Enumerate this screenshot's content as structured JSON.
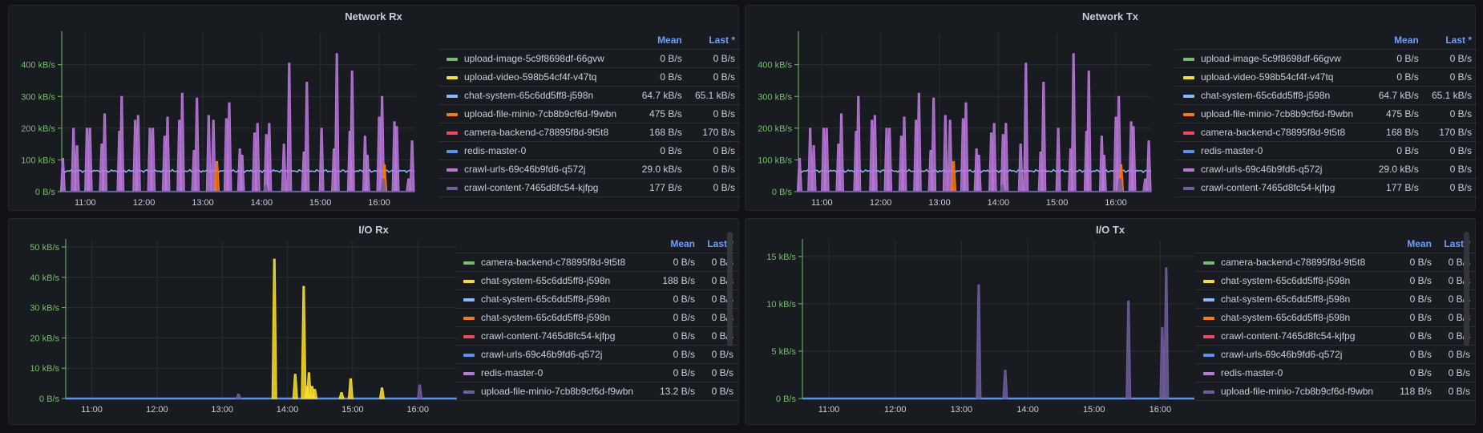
{
  "dashboard": {
    "panels": [
      {
        "id": "network-rx",
        "title": "Network Rx",
        "legend": {
          "headers": [
            "Mean",
            "Last *"
          ],
          "rows": [
            {
              "name": "upload-image-5c9f8698df-66gvw",
              "color": "#73bf69",
              "mean": "0 B/s",
              "last": "0 B/s"
            },
            {
              "name": "upload-video-598b54cf4f-v47tq",
              "color": "#fade2a",
              "mean": "0 B/s",
              "last": "0 B/s"
            },
            {
              "name": "chat-system-65c6dd5ff8-j598n",
              "color": "#8ab8ff",
              "mean": "64.7 kB/s",
              "last": "65.1 kB/s"
            },
            {
              "name": "upload-file-minio-7cb8b9cf6d-f9wbn",
              "color": "#ff780a",
              "mean": "475 B/s",
              "last": "0 B/s"
            },
            {
              "name": "camera-backend-c78895f8d-9t5t8",
              "color": "#f2495c",
              "mean": "168 B/s",
              "last": "170 B/s"
            },
            {
              "name": "redis-master-0",
              "color": "#5794f2",
              "mean": "0 B/s",
              "last": "0 B/s"
            },
            {
              "name": "crawl-urls-69c46b9fd6-q572j",
              "color": "#b877d9",
              "mean": "29.0 kB/s",
              "last": "0 B/s"
            },
            {
              "name": "crawl-content-7465d8fc54-kjfpg",
              "color": "#705da0",
              "mean": "177 B/s",
              "last": "0 B/s"
            }
          ]
        }
      },
      {
        "id": "network-tx",
        "title": "Network Tx",
        "legend": {
          "headers": [
            "Mean",
            "Last *"
          ],
          "rows": [
            {
              "name": "upload-image-5c9f8698df-66gvw",
              "color": "#73bf69",
              "mean": "0 B/s",
              "last": "0 B/s"
            },
            {
              "name": "upload-video-598b54cf4f-v47tq",
              "color": "#fade2a",
              "mean": "0 B/s",
              "last": "0 B/s"
            },
            {
              "name": "chat-system-65c6dd5ff8-j598n",
              "color": "#8ab8ff",
              "mean": "64.7 kB/s",
              "last": "65.1 kB/s"
            },
            {
              "name": "upload-file-minio-7cb8b9cf6d-f9wbn",
              "color": "#ff780a",
              "mean": "475 B/s",
              "last": "0 B/s"
            },
            {
              "name": "camera-backend-c78895f8d-9t5t8",
              "color": "#f2495c",
              "mean": "168 B/s",
              "last": "170 B/s"
            },
            {
              "name": "redis-master-0",
              "color": "#5794f2",
              "mean": "0 B/s",
              "last": "0 B/s"
            },
            {
              "name": "crawl-urls-69c46b9fd6-q572j",
              "color": "#b877d9",
              "mean": "29.0 kB/s",
              "last": "0 B/s"
            },
            {
              "name": "crawl-content-7465d8fc54-kjfpg",
              "color": "#705da0",
              "mean": "177 B/s",
              "last": "0 B/s"
            }
          ]
        }
      },
      {
        "id": "io-rx",
        "title": "I/O Rx",
        "legend": {
          "headers": [
            "Mean",
            "Last *"
          ],
          "rows": [
            {
              "name": "camera-backend-c78895f8d-9t5t8",
              "color": "#73bf69",
              "mean": "0 B/s",
              "last": "0 B/s"
            },
            {
              "name": "chat-system-65c6dd5ff8-j598n",
              "color": "#fade2a",
              "mean": "188 B/s",
              "last": "0 B/s"
            },
            {
              "name": "chat-system-65c6dd5ff8-j598n",
              "color": "#8ab8ff",
              "mean": "0 B/s",
              "last": "0 B/s"
            },
            {
              "name": "chat-system-65c6dd5ff8-j598n",
              "color": "#ff780a",
              "mean": "0 B/s",
              "last": "0 B/s"
            },
            {
              "name": "crawl-content-7465d8fc54-kjfpg",
              "color": "#f2495c",
              "mean": "0 B/s",
              "last": "0 B/s"
            },
            {
              "name": "crawl-urls-69c46b9fd6-q572j",
              "color": "#5794f2",
              "mean": "0 B/s",
              "last": "0 B/s"
            },
            {
              "name": "redis-master-0",
              "color": "#b877d9",
              "mean": "0 B/s",
              "last": "0 B/s"
            },
            {
              "name": "upload-file-minio-7cb8b9cf6d-f9wbn",
              "color": "#705da0",
              "mean": "13.2 B/s",
              "last": "0 B/s"
            }
          ]
        }
      },
      {
        "id": "io-tx",
        "title": "I/O Tx",
        "legend": {
          "headers": [
            "Mean",
            "Last *"
          ],
          "rows": [
            {
              "name": "camera-backend-c78895f8d-9t5t8",
              "color": "#73bf69",
              "mean": "0 B/s",
              "last": "0 B/s"
            },
            {
              "name": "chat-system-65c6dd5ff8-j598n",
              "color": "#fade2a",
              "mean": "0 B/s",
              "last": "0 B/s"
            },
            {
              "name": "chat-system-65c6dd5ff8-j598n",
              "color": "#8ab8ff",
              "mean": "0 B/s",
              "last": "0 B/s"
            },
            {
              "name": "chat-system-65c6dd5ff8-j598n",
              "color": "#ff780a",
              "mean": "0 B/s",
              "last": "0 B/s"
            },
            {
              "name": "crawl-content-7465d8fc54-kjfpg",
              "color": "#f2495c",
              "mean": "0 B/s",
              "last": "0 B/s"
            },
            {
              "name": "crawl-urls-69c46b9fd6-q572j",
              "color": "#5794f2",
              "mean": "0 B/s",
              "last": "0 B/s"
            },
            {
              "name": "redis-master-0",
              "color": "#b877d9",
              "mean": "0 B/s",
              "last": "0 B/s"
            },
            {
              "name": "upload-file-minio-7cb8b9cf6d-f9wbn",
              "color": "#705da0",
              "mean": "118 B/s",
              "last": "0 B/s"
            }
          ]
        }
      }
    ]
  },
  "chart_data": [
    {
      "type": "line",
      "title": "Network Rx",
      "xlabel": "",
      "ylabel": "",
      "x_ticks": [
        "11:00",
        "12:00",
        "13:00",
        "14:00",
        "15:00",
        "16:00"
      ],
      "x_range": [
        10.6,
        16.6
      ],
      "y_ticks": [
        "0 B/s",
        "100 kB/s",
        "200 kB/s",
        "300 kB/s",
        "400 kB/s"
      ],
      "ylim": [
        0,
        480
      ],
      "y_unit": "kB/s",
      "grid": true,
      "legend_position": "right",
      "series": [
        {
          "name": "chat-system-65c6dd5ff8-j598n",
          "color": "#8ab8ff",
          "kind": "baseline",
          "value": 65
        },
        {
          "name": "crawl-urls-69c46b9fd6-q572j",
          "color": "#b877d9",
          "kind": "spikes",
          "points": [
            [
              10.62,
              105
            ],
            [
              10.8,
              200
            ],
            [
              10.86,
              145
            ],
            [
              11.03,
              200
            ],
            [
              11.08,
              200
            ],
            [
              11.28,
              150
            ],
            [
              11.33,
              245
            ],
            [
              11.58,
              190
            ],
            [
              11.62,
              300
            ],
            [
              11.85,
              225
            ],
            [
              11.9,
              240
            ],
            [
              12.1,
              200
            ],
            [
              12.15,
              200
            ],
            [
              12.35,
              175
            ],
            [
              12.4,
              235
            ],
            [
              12.6,
              225
            ],
            [
              12.65,
              310
            ],
            [
              12.85,
              130
            ],
            [
              12.9,
              295
            ],
            [
              13.1,
              240
            ],
            [
              13.18,
              225
            ],
            [
              13.4,
              230
            ],
            [
              13.45,
              280
            ],
            [
              13.63,
              135
            ],
            [
              13.67,
              115
            ],
            [
              13.88,
              185
            ],
            [
              13.93,
              215
            ],
            [
              14.08,
              180
            ],
            [
              14.13,
              215
            ],
            [
              14.38,
              150
            ],
            [
              14.47,
              405
            ],
            [
              14.72,
              125
            ],
            [
              14.77,
              345
            ],
            [
              15.02,
              200
            ],
            [
              15.23,
              135
            ],
            [
              15.28,
              435
            ],
            [
              15.5,
              190
            ],
            [
              15.54,
              380
            ],
            [
              15.76,
              175
            ],
            [
              15.8,
              115
            ],
            [
              16.0,
              235
            ],
            [
              16.05,
              300
            ],
            [
              16.26,
              220
            ],
            [
              16.3,
              205
            ],
            [
              16.5,
              40
            ],
            [
              16.56,
              160
            ]
          ]
        },
        {
          "name": "upload-file-minio-7cb8b9cf6d-f9wbn",
          "color": "#ff780a",
          "kind": "spikes",
          "points": [
            [
              13.24,
              95
            ],
            [
              16.09,
              85
            ]
          ]
        },
        {
          "name": "crawl-content-7465d8fc54-kjfpg",
          "color": "#705da0",
          "kind": "spikes",
          "points": [
            [
              14.07,
              20
            ],
            [
              16.07,
              40
            ]
          ]
        }
      ]
    },
    {
      "type": "line",
      "title": "Network Tx",
      "xlabel": "",
      "ylabel": "",
      "x_ticks": [
        "11:00",
        "12:00",
        "13:00",
        "14:00",
        "15:00",
        "16:00"
      ],
      "x_range": [
        10.6,
        16.6
      ],
      "y_ticks": [
        "0 B/s",
        "100 kB/s",
        "200 kB/s",
        "300 kB/s",
        "400 kB/s"
      ],
      "ylim": [
        0,
        480
      ],
      "y_unit": "kB/s",
      "grid": true,
      "legend_position": "right",
      "series": [
        {
          "name": "chat-system-65c6dd5ff8-j598n",
          "color": "#8ab8ff",
          "kind": "baseline",
          "value": 65
        },
        {
          "name": "crawl-urls-69c46b9fd6-q572j",
          "color": "#b877d9",
          "kind": "spikes",
          "points": [
            [
              10.62,
              105
            ],
            [
              10.8,
              200
            ],
            [
              10.86,
              145
            ],
            [
              11.03,
              200
            ],
            [
              11.08,
              200
            ],
            [
              11.28,
              150
            ],
            [
              11.33,
              245
            ],
            [
              11.58,
              190
            ],
            [
              11.62,
              300
            ],
            [
              11.85,
              225
            ],
            [
              11.9,
              240
            ],
            [
              12.1,
              200
            ],
            [
              12.15,
              200
            ],
            [
              12.35,
              175
            ],
            [
              12.4,
              235
            ],
            [
              12.6,
              225
            ],
            [
              12.65,
              310
            ],
            [
              12.85,
              130
            ],
            [
              12.9,
              295
            ],
            [
              13.1,
              240
            ],
            [
              13.18,
              225
            ],
            [
              13.4,
              230
            ],
            [
              13.45,
              280
            ],
            [
              13.63,
              135
            ],
            [
              13.67,
              115
            ],
            [
              13.88,
              185
            ],
            [
              13.93,
              215
            ],
            [
              14.08,
              180
            ],
            [
              14.13,
              215
            ],
            [
              14.38,
              150
            ],
            [
              14.47,
              405
            ],
            [
              14.72,
              125
            ],
            [
              14.77,
              345
            ],
            [
              15.02,
              200
            ],
            [
              15.23,
              135
            ],
            [
              15.28,
              435
            ],
            [
              15.5,
              190
            ],
            [
              15.54,
              380
            ],
            [
              15.76,
              175
            ],
            [
              15.8,
              115
            ],
            [
              16.0,
              235
            ],
            [
              16.05,
              300
            ],
            [
              16.26,
              220
            ],
            [
              16.3,
              205
            ],
            [
              16.5,
              40
            ],
            [
              16.56,
              160
            ]
          ]
        },
        {
          "name": "upload-file-minio-7cb8b9cf6d-f9wbn",
          "color": "#ff780a",
          "kind": "spikes",
          "points": [
            [
              13.24,
              95
            ],
            [
              16.09,
              85
            ]
          ]
        },
        {
          "name": "crawl-content-7465d8fc54-kjfpg",
          "color": "#705da0",
          "kind": "spikes",
          "points": [
            [
              14.07,
              20
            ],
            [
              16.07,
              40
            ]
          ]
        }
      ]
    },
    {
      "type": "line",
      "title": "I/O Rx",
      "xlabel": "",
      "ylabel": "",
      "x_ticks": [
        "11:00",
        "12:00",
        "13:00",
        "14:00",
        "15:00",
        "16:00"
      ],
      "x_range": [
        10.6,
        16.6
      ],
      "y_ticks": [
        "0 B/s",
        "10 kB/s",
        "20 kB/s",
        "30 kB/s",
        "40 kB/s",
        "50 kB/s"
      ],
      "ylim": [
        0,
        50
      ],
      "y_unit": "kB/s",
      "grid": true,
      "legend_position": "right",
      "series": [
        {
          "name": "crawl-urls-69c46b9fd6-q572j",
          "color": "#5794f2",
          "kind": "baseline",
          "value": 0
        },
        {
          "name": "chat-system-65c6dd5ff8-j598n",
          "color": "#fade2a",
          "kind": "spikes",
          "points": [
            [
              13.8,
              46
            ],
            [
              14.12,
              8
            ],
            [
              14.25,
              37
            ],
            [
              14.3,
              4
            ],
            [
              14.33,
              8.5
            ],
            [
              14.38,
              4
            ],
            [
              14.42,
              3
            ],
            [
              14.83,
              2
            ],
            [
              14.97,
              6.5
            ],
            [
              15.45,
              3.5
            ]
          ]
        },
        {
          "name": "upload-file-minio-7cb8b9cf6d-f9wbn",
          "color": "#705da0",
          "kind": "spikes",
          "points": [
            [
              13.25,
              1.5
            ],
            [
              16.03,
              4.5
            ]
          ]
        }
      ]
    },
    {
      "type": "line",
      "title": "I/O Tx",
      "xlabel": "",
      "ylabel": "",
      "x_ticks": [
        "11:00",
        "12:00",
        "13:00",
        "14:00",
        "15:00",
        "16:00"
      ],
      "x_range": [
        10.6,
        16.6
      ],
      "y_ticks": [
        "0 B/s",
        "5 kB/s",
        "10 kB/s",
        "15 kB/s"
      ],
      "ylim": [
        0,
        16
      ],
      "y_unit": "kB/s",
      "grid": true,
      "legend_position": "right",
      "series": [
        {
          "name": "crawl-urls-69c46b9fd6-q572j",
          "color": "#5794f2",
          "kind": "baseline",
          "value": 0
        },
        {
          "name": "upload-file-minio-7cb8b9cf6d-f9wbn",
          "color": "#705da0",
          "kind": "spikes",
          "points": [
            [
              13.26,
              12
            ],
            [
              13.66,
              3
            ],
            [
              15.52,
              10.3
            ],
            [
              16.03,
              7.5
            ],
            [
              16.09,
              13.8
            ]
          ]
        }
      ]
    }
  ]
}
